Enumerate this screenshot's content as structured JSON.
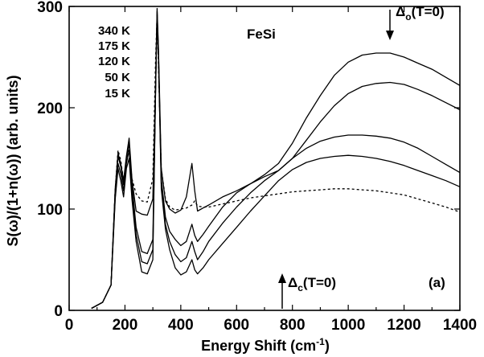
{
  "chart_data": {
    "type": "line",
    "title": "FeSi",
    "panel_label": "(a)",
    "xlabel": "Energy Shift (cm",
    "xlabel_sup": "-1",
    "xlabel_tail": ")",
    "ylabel": "S(ω)/(1+n(ω))  (arb. units)",
    "xlim": [
      0,
      1400
    ],
    "ylim": [
      0,
      300
    ],
    "xticks": [
      0,
      200,
      400,
      600,
      800,
      1000,
      1200,
      1400
    ],
    "yticks": [
      0,
      100,
      200,
      300
    ],
    "legend": [
      "340 K",
      "175 K",
      "120 K",
      "50 K",
      "15 K"
    ],
    "annotations": {
      "delta_o": {
        "symbol": "Δ",
        "sub": "o",
        "text": "(T=0)",
        "x": 1140
      },
      "delta_c": {
        "symbol": "Δ",
        "sub": "c",
        "text": "(T=0)",
        "x": 760
      }
    },
    "series": [
      {
        "name": "15 K",
        "dashed": true,
        "x": [
          80,
          120,
          150,
          165,
          175,
          185,
          195,
          205,
          215,
          225,
          240,
          260,
          280,
          300,
          310,
          315,
          320,
          330,
          345,
          360,
          380,
          400,
          420,
          440,
          450,
          460,
          480,
          500,
          550,
          600,
          650,
          700,
          750,
          800,
          850,
          900,
          950,
          1000,
          1050,
          1100,
          1150,
          1200,
          1250,
          1300,
          1350,
          1400
        ],
        "y": [
          2,
          8,
          25,
          120,
          158,
          148,
          128,
          148,
          162,
          130,
          115,
          108,
          107,
          130,
          250,
          292,
          240,
          140,
          110,
          102,
          99,
          100,
          101,
          104,
          108,
          103,
          102,
          102,
          105,
          108,
          111,
          113,
          115,
          117,
          118,
          119,
          120,
          120,
          119,
          118,
          116,
          114,
          110,
          106,
          102,
          97
        ]
      },
      {
        "name": "50 K",
        "x": [
          80,
          120,
          150,
          165,
          175,
          185,
          195,
          205,
          215,
          225,
          240,
          260,
          280,
          300,
          310,
          315,
          320,
          330,
          345,
          360,
          380,
          400,
          420,
          440,
          450,
          460,
          480,
          500,
          550,
          600,
          650,
          700,
          750,
          800,
          850,
          900,
          950,
          1000,
          1050,
          1100,
          1150,
          1200,
          1250,
          1300,
          1350,
          1400
        ],
        "y": [
          2,
          8,
          25,
          110,
          140,
          128,
          112,
          140,
          150,
          110,
          68,
          38,
          36,
          50,
          220,
          290,
          250,
          120,
          80,
          60,
          42,
          35,
          38,
          50,
          40,
          36,
          42,
          50,
          66,
          82,
          98,
          113,
          128,
          139,
          146,
          150,
          152,
          153,
          152,
          150,
          147,
          143,
          138,
          133,
          128,
          122
        ]
      },
      {
        "name": "120 K",
        "x": [
          80,
          120,
          150,
          165,
          175,
          185,
          195,
          205,
          215,
          225,
          240,
          260,
          280,
          300,
          310,
          315,
          320,
          330,
          345,
          360,
          380,
          400,
          420,
          440,
          450,
          460,
          480,
          500,
          550,
          600,
          650,
          700,
          750,
          800,
          850,
          900,
          950,
          1000,
          1050,
          1100,
          1150,
          1200,
          1250,
          1300,
          1350,
          1400
        ],
        "y": [
          2,
          8,
          25,
          112,
          145,
          135,
          118,
          145,
          158,
          118,
          75,
          48,
          46,
          60,
          222,
          292,
          252,
          125,
          85,
          68,
          55,
          48,
          52,
          68,
          58,
          50,
          58,
          68,
          86,
          102,
          116,
          128,
          138,
          150,
          160,
          167,
          171,
          173,
          173,
          172,
          170,
          166,
          160,
          152,
          144,
          136
        ]
      },
      {
        "name": "175 K",
        "x": [
          80,
          120,
          150,
          165,
          175,
          185,
          195,
          205,
          215,
          225,
          240,
          260,
          280,
          300,
          310,
          315,
          320,
          330,
          345,
          360,
          380,
          400,
          420,
          440,
          450,
          460,
          480,
          500,
          550,
          600,
          650,
          700,
          750,
          800,
          850,
          900,
          950,
          1000,
          1050,
          1100,
          1150,
          1200,
          1250,
          1300,
          1350,
          1400
        ],
        "y": [
          2,
          8,
          25,
          118,
          152,
          142,
          124,
          150,
          165,
          125,
          82,
          58,
          56,
          70,
          225,
          295,
          255,
          130,
          92,
          78,
          70,
          64,
          68,
          85,
          74,
          68,
          75,
          83,
          102,
          116,
          125,
          132,
          138,
          150,
          168,
          186,
          202,
          214,
          221,
          224,
          225,
          223,
          218,
          212,
          205,
          198
        ]
      },
      {
        "name": "340 K",
        "x": [
          80,
          120,
          150,
          165,
          175,
          185,
          195,
          205,
          215,
          225,
          240,
          260,
          280,
          300,
          310,
          315,
          320,
          330,
          345,
          360,
          380,
          400,
          420,
          440,
          450,
          460,
          480,
          500,
          550,
          600,
          650,
          700,
          750,
          800,
          850,
          900,
          950,
          1000,
          1050,
          1100,
          1150,
          1200,
          1250,
          1300,
          1350,
          1400
        ],
        "y": [
          2,
          8,
          25,
          120,
          155,
          145,
          128,
          152,
          170,
          130,
          98,
          95,
          94,
          110,
          228,
          298,
          258,
          140,
          108,
          100,
          96,
          99,
          112,
          145,
          118,
          98,
          101,
          104,
          112,
          118,
          125,
          134,
          145,
          165,
          190,
          212,
          232,
          245,
          252,
          254,
          254,
          250,
          244,
          238,
          230,
          222
        ]
      }
    ]
  }
}
